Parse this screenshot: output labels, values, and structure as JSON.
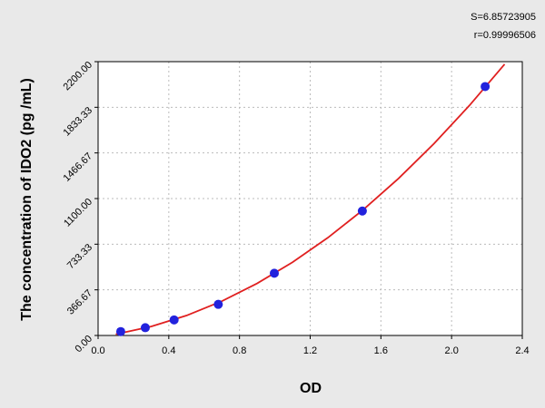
{
  "chart_data": {
    "type": "scatter",
    "y_label": "The concentration of IDO2 (pg /mL)",
    "x_label": "OD",
    "annotations": [
      "S=6.85723905",
      "r=0.99996506"
    ],
    "xlim": [
      0,
      2.4
    ],
    "ylim": [
      0,
      2200
    ],
    "xticks": [
      {
        "value": 0,
        "label": "0.0"
      },
      {
        "value": 0.4,
        "label": "0.4"
      },
      {
        "value": 0.8,
        "label": "0.8"
      },
      {
        "value": 1.2,
        "label": "1.2"
      },
      {
        "value": 1.6,
        "label": "1.6"
      },
      {
        "value": 2,
        "label": "2.0"
      },
      {
        "value": 2.4,
        "label": "2.4"
      }
    ],
    "yticks": [
      {
        "value": 0,
        "label": "0.00"
      },
      {
        "value": 366.67,
        "label": "366.67"
      },
      {
        "value": 733.33,
        "label": "733.33"
      },
      {
        "value": 1100,
        "label": "1100.00"
      },
      {
        "value": 1466.67,
        "label": "1466.67"
      },
      {
        "value": 1833.33,
        "label": "1833.33"
      },
      {
        "value": 2200,
        "label": "2200.00"
      }
    ],
    "grid": true,
    "points": {
      "color": "#2222dd",
      "x": [
        0.128,
        0.267,
        0.43,
        0.68,
        0.997,
        1.495,
        2.19
      ],
      "y": [
        31.25,
        62.5,
        125,
        250,
        500,
        1000,
        2000
      ]
    },
    "curve": {
      "color": "#e02020",
      "x": [
        0.1,
        0.3,
        0.5,
        0.7,
        0.9,
        1.1,
        1.3,
        1.5,
        1.7,
        1.9,
        2.1,
        2.3
      ],
      "y": [
        10.4,
        71.6,
        160,
        275.6,
        418.4,
        588.4,
        785.6,
        1010,
        1261.6,
        1540.4,
        1846.4,
        2179.6
      ]
    }
  }
}
